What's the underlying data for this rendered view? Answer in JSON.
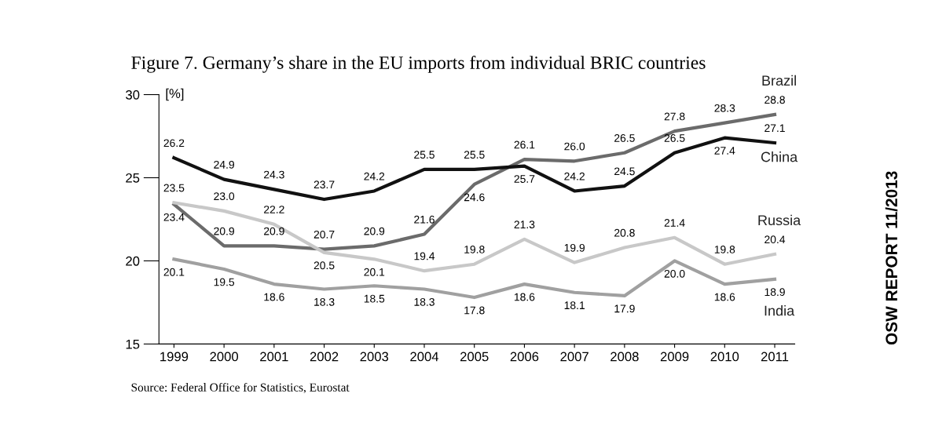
{
  "chart_data": {
    "type": "line",
    "title": "Figure 7. Germany’s share in the EU imports from individual BRIC countries",
    "ylabel": "[%]",
    "categories": [
      "1999",
      "2000",
      "2001",
      "2002",
      "2003",
      "2004",
      "2005",
      "2006",
      "2007",
      "2008",
      "2009",
      "2010",
      "2011"
    ],
    "series": [
      {
        "name": "Brazil",
        "color": "#6b6b6b",
        "values": [
          23.4,
          20.9,
          20.9,
          20.7,
          20.9,
          21.6,
          24.6,
          26.1,
          26.0,
          26.5,
          27.8,
          28.3,
          28.8
        ],
        "value_labels": [
          "23.4",
          "20.9",
          "20.9",
          "20.7",
          "20.9",
          "21.6",
          "24.6",
          "26.1",
          "26.0",
          "26.5",
          "27.8",
          "28.3",
          "28.8"
        ]
      },
      {
        "name": "China",
        "color": "#111111",
        "values": [
          26.2,
          24.9,
          24.3,
          23.7,
          24.2,
          25.5,
          25.5,
          25.7,
          24.2,
          24.5,
          26.5,
          27.4,
          27.1
        ],
        "value_labels": [
          "26.2",
          "24.9",
          "24.3",
          "23.7",
          "24.2",
          "25.5",
          "25.5",
          "25.7",
          "24.2",
          "24.5",
          "26.5",
          "27.4",
          "27.1"
        ]
      },
      {
        "name": "Russia",
        "color": "#c8c8c8",
        "values": [
          23.5,
          23.0,
          22.2,
          20.5,
          20.1,
          19.4,
          19.8,
          21.3,
          19.9,
          20.8,
          21.4,
          19.8,
          20.4
        ],
        "value_labels": [
          "23.5",
          "23.0",
          "22.2",
          "20.5",
          "20.1",
          "19.4",
          "19.8",
          "21.3",
          "19.9",
          "20.8",
          "21.4",
          "19.8",
          "20.4"
        ]
      },
      {
        "name": "India",
        "color": "#a0a0a0",
        "values": [
          20.1,
          19.5,
          18.6,
          18.3,
          18.5,
          18.3,
          17.8,
          18.6,
          18.1,
          17.9,
          20.0,
          18.6,
          18.9
        ],
        "value_labels": [
          "20.1",
          "19.5",
          "18.6",
          "18.3",
          "18.5",
          "18.3",
          "17.8",
          "18.6",
          "18.1",
          "17.9",
          "20.0",
          "18.6",
          "18.9"
        ]
      }
    ],
    "ylim": [
      15,
      30
    ],
    "yticks": [
      15,
      20,
      25,
      30
    ],
    "grid": false,
    "legend": false,
    "data_labels": true,
    "marker": "none",
    "line_style": "solid",
    "annotations": [
      "Source: Federal Office for Statistics, Eurostat",
      "OSW REPORT 11/2013"
    ]
  }
}
